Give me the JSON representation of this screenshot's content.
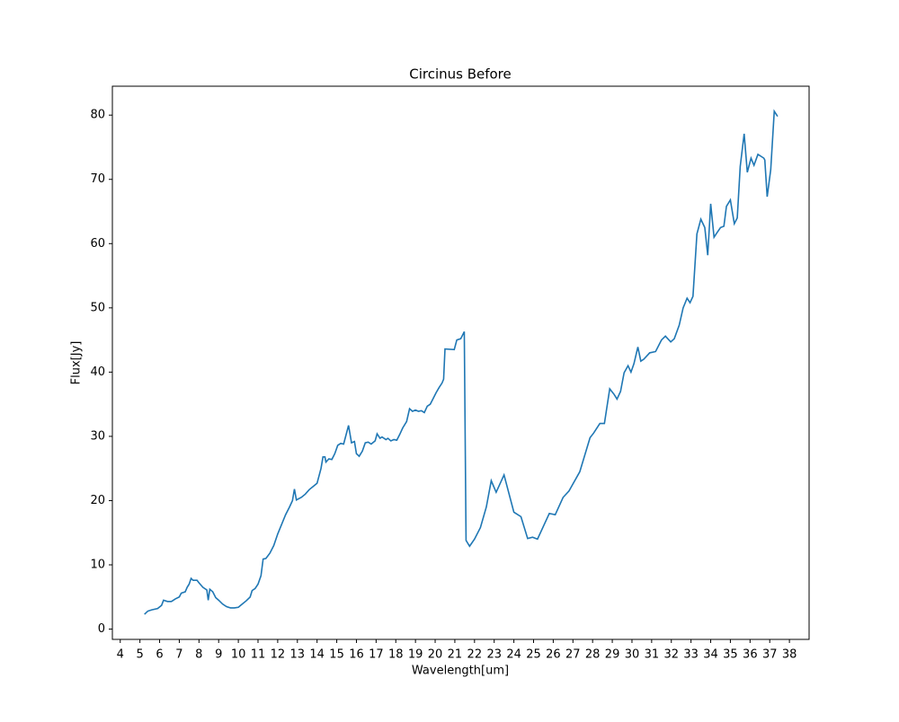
{
  "chart_data": {
    "type": "line",
    "title": "Circinus Before",
    "xlabel": "Wavelength[um]",
    "ylabel": "Flux[Jy]",
    "x": [
      5.23,
      5.4,
      5.6,
      5.9,
      6.1,
      6.2,
      6.4,
      6.6,
      6.8,
      7.0,
      7.1,
      7.3,
      7.4,
      7.5,
      7.6,
      7.7,
      7.9,
      8.0,
      8.2,
      8.4,
      8.47,
      8.55,
      8.7,
      8.85,
      9.0,
      9.2,
      9.4,
      9.6,
      9.8,
      10.0,
      10.2,
      10.4,
      10.6,
      10.7,
      10.85,
      11.0,
      11.15,
      11.26,
      11.4,
      11.6,
      11.8,
      12.0,
      12.2,
      12.4,
      12.6,
      12.75,
      12.85,
      12.95,
      13.2,
      13.4,
      13.6,
      13.8,
      14.0,
      14.2,
      14.3,
      14.4,
      14.45,
      14.6,
      14.75,
      14.9,
      15.05,
      15.2,
      15.35,
      15.6,
      15.75,
      15.9,
      16.0,
      16.14,
      16.3,
      16.45,
      16.6,
      16.75,
      16.95,
      17.05,
      17.2,
      17.3,
      17.5,
      17.6,
      17.75,
      17.9,
      18.05,
      18.2,
      18.35,
      18.55,
      18.7,
      18.85,
      19.0,
      19.15,
      19.3,
      19.45,
      19.6,
      19.75,
      19.9,
      20.05,
      20.2,
      20.35,
      20.43,
      20.5,
      20.97,
      21.1,
      21.3,
      21.48,
      21.57,
      21.75,
      22.0,
      22.3,
      22.6,
      22.85,
      23.1,
      23.5,
      24.0,
      24.36,
      24.7,
      24.95,
      25.2,
      25.5,
      25.8,
      26.1,
      26.5,
      26.8,
      27.35,
      27.87,
      28.05,
      28.37,
      28.6,
      28.7,
      28.87,
      29.1,
      29.24,
      29.42,
      29.6,
      29.8,
      29.95,
      30.1,
      30.3,
      30.45,
      30.6,
      30.9,
      31.2,
      31.5,
      31.7,
      31.97,
      32.15,
      32.4,
      32.6,
      32.8,
      32.95,
      33.1,
      33.3,
      33.5,
      33.7,
      33.85,
      34.0,
      34.17,
      34.3,
      34.5,
      34.67,
      34.8,
      35.0,
      35.2,
      35.35,
      35.5,
      35.7,
      35.86,
      36.05,
      36.2,
      36.4,
      36.7,
      36.75,
      36.87,
      37.05,
      37.23,
      37.4
    ],
    "series": [
      {
        "name": "Circinus Before",
        "color": "#1f77b4",
        "values": [
          2.3,
          2.8,
          3.0,
          3.2,
          3.7,
          4.5,
          4.3,
          4.3,
          4.7,
          5.0,
          5.6,
          5.8,
          6.5,
          7.0,
          7.9,
          7.6,
          7.6,
          7.2,
          6.5,
          6.1,
          4.5,
          6.2,
          5.8,
          4.9,
          4.5,
          3.9,
          3.5,
          3.3,
          3.3,
          3.4,
          3.9,
          4.4,
          5.0,
          6.0,
          6.3,
          7.0,
          8.3,
          10.9,
          11.0,
          11.8,
          13.0,
          14.8,
          16.3,
          17.8,
          19.0,
          20.0,
          21.8,
          20.1,
          20.5,
          21.0,
          21.7,
          22.2,
          22.7,
          25.0,
          26.8,
          26.8,
          26.0,
          26.5,
          26.4,
          27.3,
          28.6,
          28.9,
          28.8,
          31.7,
          29.0,
          29.2,
          27.3,
          26.9,
          27.7,
          29.0,
          29.1,
          28.8,
          29.3,
          30.4,
          29.7,
          29.9,
          29.5,
          29.7,
          29.3,
          29.5,
          29.4,
          30.3,
          31.3,
          32.3,
          34.3,
          33.9,
          34.1,
          33.9,
          34.0,
          33.7,
          34.7,
          35.0,
          35.9,
          36.8,
          37.6,
          38.3,
          38.9,
          43.6,
          43.5,
          45.0,
          45.2,
          46.3,
          13.8,
          12.9,
          14.0,
          15.8,
          19.0,
          23.1,
          21.3,
          24.0,
          18.2,
          17.5,
          14.1,
          14.3,
          14.0,
          16.0,
          18.0,
          17.8,
          20.5,
          21.5,
          24.5,
          29.8,
          30.5,
          32.0,
          32.0,
          34.0,
          37.4,
          36.5,
          35.8,
          37.0,
          39.9,
          41.0,
          40.0,
          41.3,
          43.9,
          41.7,
          42.0,
          43.0,
          43.2,
          45.0,
          45.6,
          44.7,
          45.2,
          47.3,
          50.0,
          51.5,
          50.8,
          51.8,
          61.5,
          63.8,
          62.5,
          58.2,
          66.2,
          61.0,
          61.6,
          62.5,
          62.7,
          65.8,
          66.8,
          63.1,
          64.0,
          72.0,
          77.1,
          71.1,
          73.3,
          72.2,
          73.9,
          73.3,
          73.0,
          67.3,
          71.5,
          80.6,
          79.8
        ]
      }
    ],
    "xlim": [
      3.6,
      39.0
    ],
    "ylim": [
      -1.6,
      84.5
    ],
    "xticks": [
      4,
      5,
      6,
      7,
      8,
      9,
      10,
      11,
      12,
      13,
      14,
      15,
      16,
      17,
      18,
      19,
      20,
      21,
      22,
      23,
      24,
      25,
      26,
      27,
      28,
      29,
      30,
      31,
      32,
      33,
      34,
      35,
      36,
      37,
      38
    ],
    "yticks": [
      0,
      10,
      20,
      30,
      40,
      50,
      60,
      70,
      80
    ],
    "grid": false
  }
}
